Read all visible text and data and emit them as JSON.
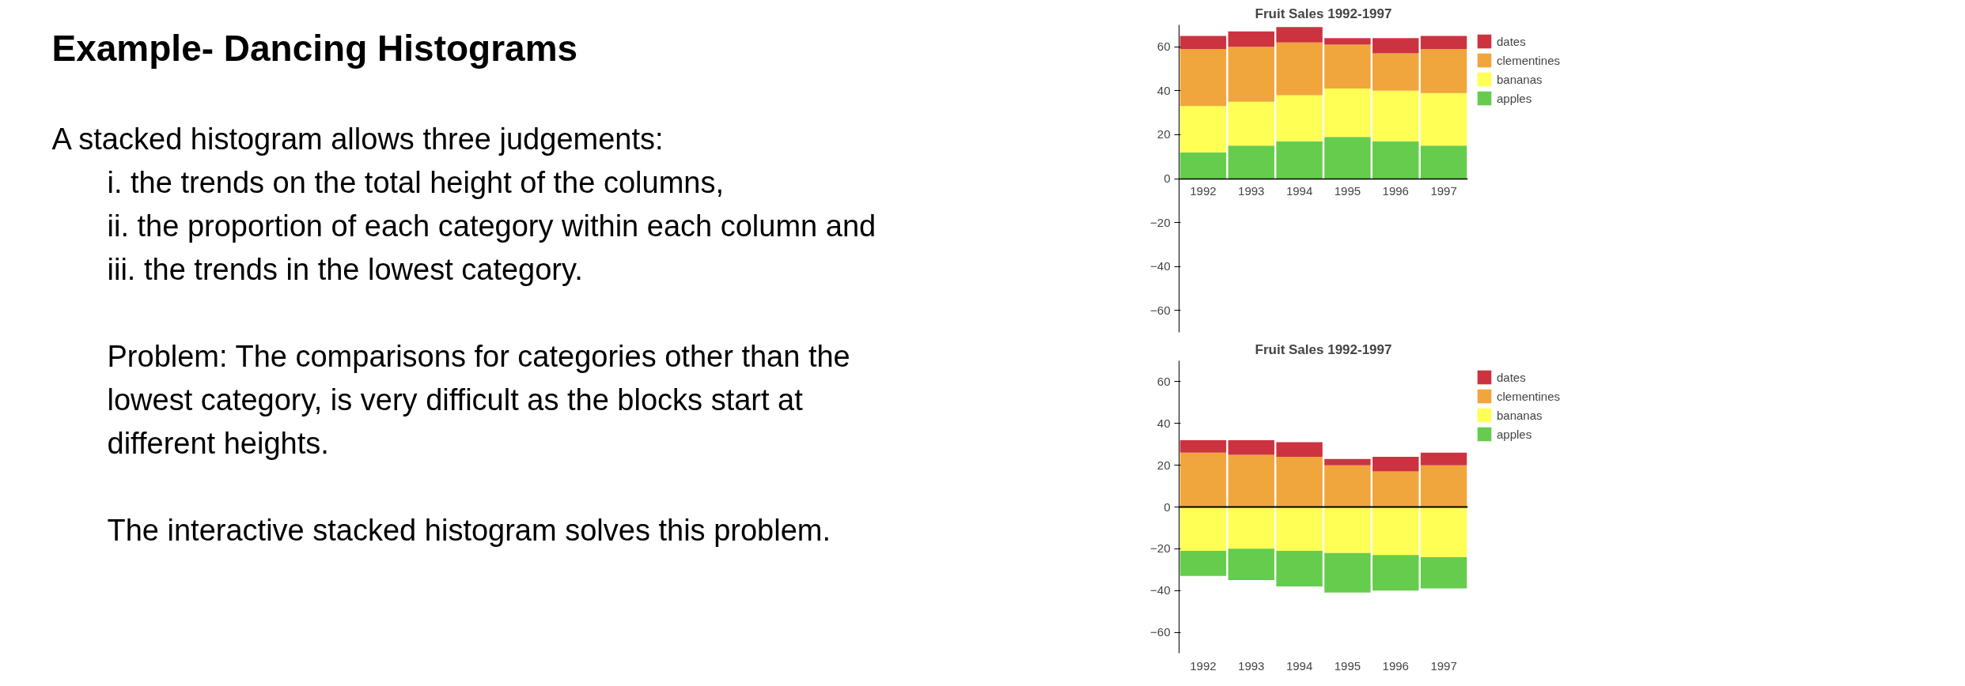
{
  "chart_data": [
    {
      "type": "other",
      "title": "Example- Dancing Histograms",
      "annotations": [
        "A stacked histogram allows three judgements:",
        "i. the trends on the total height of the columns,",
        "ii. the proportion of each category within each column and",
        "iii. the trends in the lowest category.",
        "Problem:  The comparisons for categories other than the",
        "lowest category, is very difficult as the blocks start at",
        "different heights.",
        "The interactive stacked histogram solves this problem."
      ]
    },
    {
      "type": "bar",
      "stacked": true,
      "title": "Fruit Sales 1992-1997",
      "categories": [
        "1992",
        "1993",
        "1994",
        "1995",
        "1996",
        "1997"
      ],
      "ylim": [
        -70,
        70
      ],
      "yticks": [
        -60,
        -40,
        -20,
        0,
        20,
        40,
        60
      ],
      "grid": false,
      "legend": "right",
      "series": [
        {
          "name": "apples",
          "color": "#66cc4d",
          "values": [
            12,
            15,
            17,
            19,
            17,
            15
          ]
        },
        {
          "name": "bananas",
          "color": "#ffff55",
          "values": [
            21,
            20,
            21,
            22,
            23,
            24
          ]
        },
        {
          "name": "clementines",
          "color": "#f0a63c",
          "values": [
            26,
            25,
            24,
            20,
            17,
            20
          ]
        },
        {
          "name": "dates",
          "color": "#cc3340",
          "values": [
            6,
            7,
            7,
            3,
            7,
            6
          ]
        }
      ]
    },
    {
      "type": "bar",
      "stacked": true,
      "title": "Fruit Sales 1992-1997",
      "categories": [
        "1992",
        "1993",
        "1994",
        "1995",
        "1996",
        "1997"
      ],
      "ylim": [
        -70,
        70
      ],
      "yticks": [
        -60,
        -40,
        -20,
        0,
        20,
        40,
        60
      ],
      "grid": false,
      "legend": "right",
      "ref_lines": [
        {
          "axis": "y",
          "value": 0,
          "color": "#000000"
        }
      ],
      "series": [
        {
          "name": "bananas",
          "color": "#ffff55",
          "values": [
            -21,
            -20,
            -21,
            -22,
            -23,
            -24
          ]
        },
        {
          "name": "apples",
          "color": "#66cc4d",
          "values": [
            -12,
            -15,
            -17,
            -19,
            -17,
            -15
          ]
        },
        {
          "name": "clementines",
          "color": "#f0a63c",
          "values": [
            26,
            25,
            24,
            20,
            17,
            20
          ]
        },
        {
          "name": "dates",
          "color": "#cc3340",
          "values": [
            6,
            7,
            7,
            3,
            7,
            6
          ]
        }
      ]
    }
  ]
}
